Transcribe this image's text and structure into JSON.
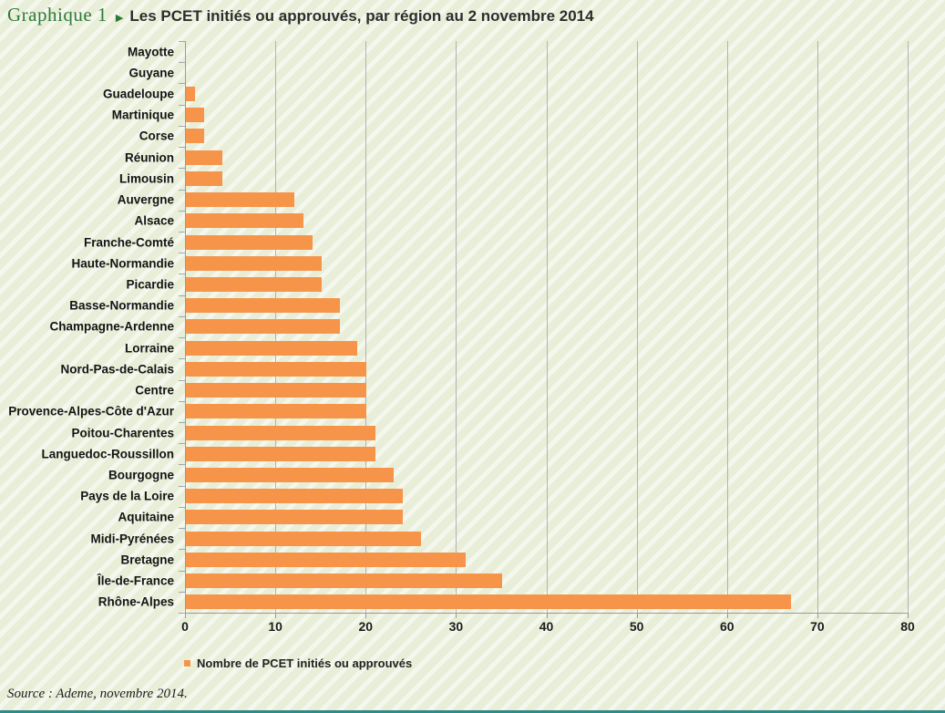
{
  "header": {
    "figure_label": "Graphique 1",
    "arrow": "▶",
    "title": "Les PCET initiés ou approuvés, par région au 2 novembre 2014"
  },
  "legend": {
    "label": "Nombre de PCET initiés ou approuvés",
    "swatch_color": "#f6954a"
  },
  "source": "Source : Ademe, novembre 2014.",
  "colors": {
    "bar": "#f6954a",
    "background": "#e8eed8",
    "stripe": "#f6f9ee",
    "gridline": "#b2b2b6",
    "axis": "#9a9a9a",
    "title_green": "#2e7a39",
    "title_dark": "#2d2d2d",
    "bottom_strip": "#2e8b8d"
  },
  "chart_data": {
    "type": "bar",
    "orientation": "horizontal",
    "title": "Les PCET initiés ou approuvés, par région au 2 novembre 2014",
    "xlabel": "",
    "ylabel": "",
    "xlim": [
      0,
      80
    ],
    "xticks": [
      0,
      10,
      20,
      30,
      40,
      50,
      60,
      70,
      80
    ],
    "grid": true,
    "legend_entries": [
      "Nombre de PCET initiés ou approuvés"
    ],
    "legend_position": "bottom-left",
    "categories": [
      "Mayotte",
      "Guyane",
      "Guadeloupe",
      "Martinique",
      "Corse",
      "Réunion",
      "Limousin",
      "Auvergne",
      "Alsace",
      "Franche-Comté",
      "Haute-Normandie",
      "Picardie",
      "Basse-Normandie",
      "Champagne-Ardenne",
      "Lorraine",
      "Nord-Pas-de-Calais",
      "Centre",
      "Provence-Alpes-Côte d'Azur",
      "Poitou-Charentes",
      "Languedoc-Roussillon",
      "Bourgogne",
      "Pays de la Loire",
      "Aquitaine",
      "Midi-Pyrénées",
      "Bretagne",
      "Île-de-France",
      "Rhône-Alpes"
    ],
    "values": [
      0,
      0,
      1,
      2,
      2,
      4,
      4,
      12,
      13,
      14,
      15,
      15,
      17,
      17,
      19,
      20,
      20,
      20,
      21,
      21,
      23,
      24,
      24,
      26,
      31,
      35,
      67
    ]
  }
}
